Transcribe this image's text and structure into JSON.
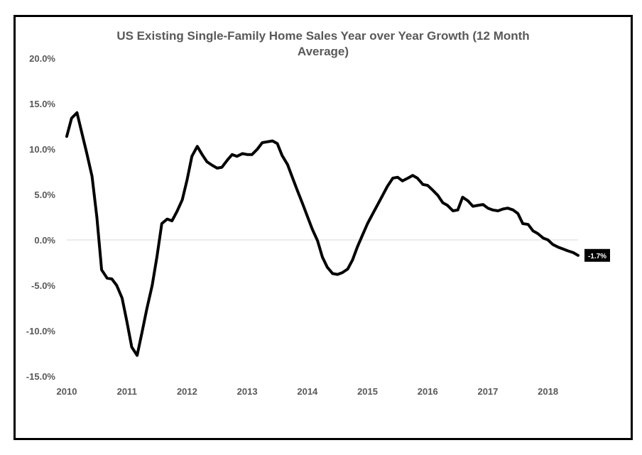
{
  "chart_data": {
    "type": "line",
    "title": "US Existing Single-Family Home Sales Year over Year Growth (12 Month Average)",
    "xlabel": "",
    "ylabel": "",
    "x_ticks": [
      "2010",
      "2011",
      "2012",
      "2013",
      "2014",
      "2015",
      "2016",
      "2017",
      "2018"
    ],
    "xlim": [
      2010.0,
      2018.5
    ],
    "y_ticks": [
      "20.0%",
      "15.0%",
      "10.0%",
      "5.0%",
      "0.0%",
      "-5.0%",
      "-10.0%",
      "-15.0%"
    ],
    "ylim": [
      -15.0,
      20.0
    ],
    "grid": false,
    "legend": "none",
    "line_color": "#000000",
    "series": [
      {
        "x": [
          2010.0,
          2010.08,
          2010.17,
          2010.25,
          2010.33,
          2010.42,
          2010.5,
          2010.58,
          2010.67,
          2010.75,
          2010.83,
          2010.92,
          2011.0,
          2011.08,
          2011.17,
          2011.25,
          2011.33,
          2011.42,
          2011.5,
          2011.58,
          2011.67,
          2011.75,
          2011.83,
          2011.92,
          2012.0,
          2012.08,
          2012.17,
          2012.25,
          2012.33,
          2012.42,
          2012.5,
          2012.58,
          2012.67,
          2012.75,
          2012.83,
          2012.92,
          2013.0,
          2013.08,
          2013.17,
          2013.25,
          2013.33,
          2013.42,
          2013.5,
          2013.58,
          2013.67,
          2013.75,
          2013.83,
          2013.92,
          2014.0,
          2014.08,
          2014.17,
          2014.25,
          2014.33,
          2014.42,
          2014.5,
          2014.58,
          2014.67,
          2014.75,
          2014.83,
          2014.92,
          2015.0,
          2015.08,
          2015.17,
          2015.25,
          2015.33,
          2015.42,
          2015.5,
          2015.58,
          2015.67,
          2015.75,
          2015.83,
          2015.92,
          2016.0,
          2016.08,
          2016.17,
          2016.25,
          2016.33,
          2016.42,
          2016.5,
          2016.58,
          2016.67,
          2016.75,
          2016.83,
          2016.92,
          2017.0,
          2017.08,
          2017.17,
          2017.25,
          2017.33,
          2017.42,
          2017.5,
          2017.58,
          2017.67,
          2017.75,
          2017.83,
          2017.92,
          2018.0,
          2018.08,
          2018.17,
          2018.25,
          2018.33,
          2018.42,
          2018.5
        ],
        "values": [
          11.4,
          13.4,
          14.0,
          11.8,
          9.6,
          7.0,
          2.5,
          -3.3,
          -4.2,
          -4.3,
          -5.0,
          -6.4,
          -9.0,
          -11.8,
          -12.7,
          -10.2,
          -7.6,
          -5.0,
          -1.8,
          1.8,
          2.3,
          2.1,
          3.1,
          4.4,
          6.6,
          9.2,
          10.3,
          9.4,
          8.6,
          8.2,
          7.9,
          8.0,
          8.8,
          9.4,
          9.2,
          9.5,
          9.4,
          9.4,
          10.0,
          10.7,
          10.8,
          10.9,
          10.6,
          9.3,
          8.3,
          6.9,
          5.5,
          4.0,
          2.6,
          1.2,
          -0.1,
          -1.9,
          -3.0,
          -3.7,
          -3.8,
          -3.6,
          -3.2,
          -2.2,
          -0.8,
          0.6,
          1.8,
          2.8,
          3.9,
          4.9,
          5.9,
          6.8,
          6.9,
          6.5,
          6.8,
          7.1,
          6.8,
          6.1,
          6.0,
          5.5,
          4.9,
          4.1,
          3.8,
          3.2,
          3.3,
          4.7,
          4.3,
          3.7,
          3.8,
          3.9,
          3.5,
          3.3,
          3.2,
          3.4,
          3.5,
          3.3,
          2.9,
          1.8,
          1.7,
          1.0,
          0.7,
          0.2,
          0.0,
          -0.5,
          -0.8,
          -1.0,
          -1.2,
          -1.4,
          -1.7
        ]
      }
    ],
    "end_label": "-1.7%",
    "end_label_bg": "#000000",
    "end_label_color": "#ffffff"
  }
}
